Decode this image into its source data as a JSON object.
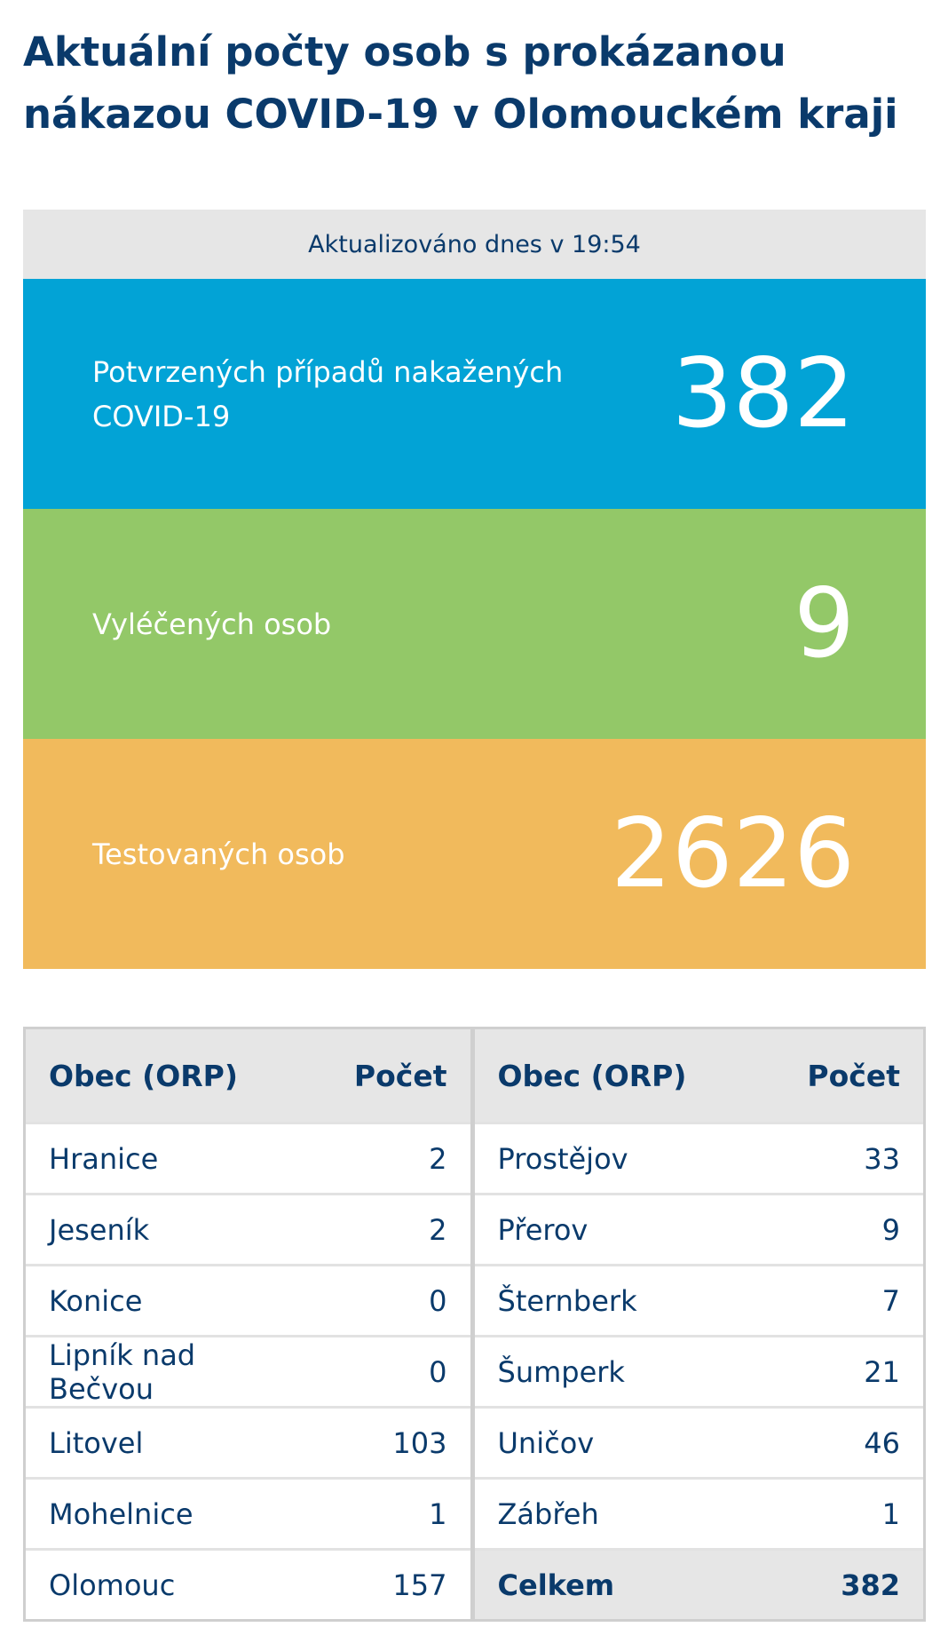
{
  "page": {
    "title": "Aktuální počty osob s prokázanou nákazou COVID-19 v Olomouckém kraji"
  },
  "stats": {
    "updated": "Aktualizováno dnes v 19:54",
    "confirmed": {
      "label": "Potvrzených případů nakažených COVID-19",
      "value": "382",
      "color": "#02a3d6"
    },
    "recovered": {
      "label": "Vyléčených osob",
      "value": "9",
      "color": "#93c868"
    },
    "tested": {
      "label": "Testovaných osob",
      "value": "2626",
      "color": "#f1ba5c"
    }
  },
  "table": {
    "header_obec": "Obec (ORP)",
    "header_pocet": "Počet",
    "left_rows": [
      {
        "obec": "Hranice",
        "pocet": "2"
      },
      {
        "obec": "Jeseník",
        "pocet": "2"
      },
      {
        "obec": "Konice",
        "pocet": "0"
      },
      {
        "obec": "Lipník nad Bečvou",
        "pocet": "0"
      },
      {
        "obec": "Litovel",
        "pocet": "103"
      },
      {
        "obec": "Mohelnice",
        "pocet": "1"
      },
      {
        "obec": "Olomouc",
        "pocet": "157"
      }
    ],
    "right_rows": [
      {
        "obec": "Prostějov",
        "pocet": "33"
      },
      {
        "obec": "Přerov",
        "pocet": "9"
      },
      {
        "obec": "Šternberk",
        "pocet": "7"
      },
      {
        "obec": "Šumperk",
        "pocet": "21"
      },
      {
        "obec": "Uničov",
        "pocet": "46"
      },
      {
        "obec": "Zábřeh",
        "pocet": "1"
      }
    ],
    "total": {
      "label": "Celkem",
      "value": "382"
    }
  }
}
